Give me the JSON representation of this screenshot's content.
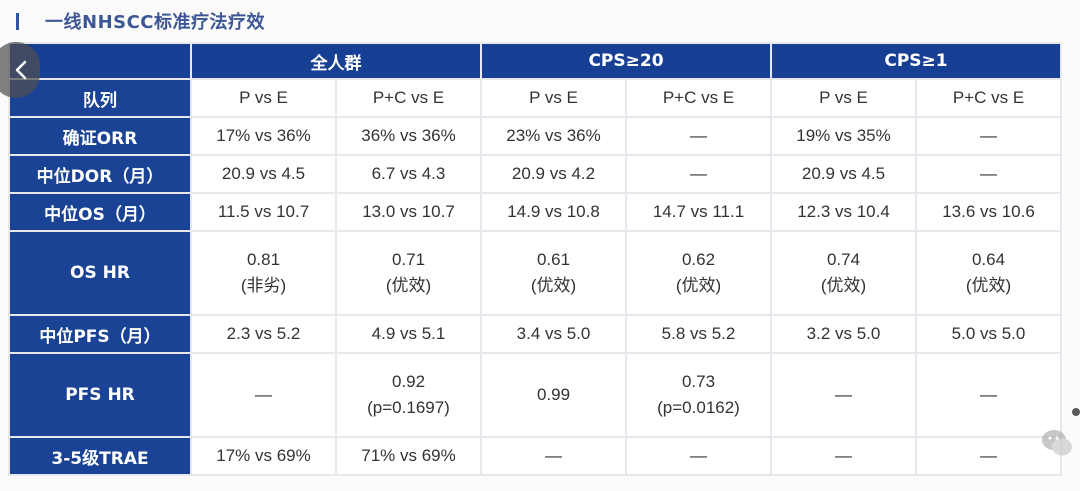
{
  "title": "一线NHSCC标准疗法疗效",
  "groups": [
    "全人群",
    "CPS≥20",
    "CPS≥1"
  ],
  "subheader": {
    "label": "队列",
    "cols": [
      "P vs E",
      "P+C vs E",
      "P vs E",
      "P+C vs E",
      "P vs E",
      "P+C vs E"
    ]
  },
  "rows": [
    {
      "label": "确证ORR",
      "cells": [
        [
          "17% vs 36%"
        ],
        [
          "36% vs 36%"
        ],
        [
          "23% vs 36%"
        ],
        [
          "—"
        ],
        [
          "19% vs 35%"
        ],
        [
          "—"
        ]
      ]
    },
    {
      "label": "中位DOR（月）",
      "cells": [
        [
          "20.9 vs 4.5"
        ],
        [
          "6.7 vs 4.3"
        ],
        [
          "20.9 vs 4.2"
        ],
        [
          "—"
        ],
        [
          "20.9 vs 4.5"
        ],
        [
          "—"
        ]
      ]
    },
    {
      "label": "中位OS（月）",
      "cells": [
        [
          "11.5 vs 10.7"
        ],
        [
          "13.0 vs 10.7"
        ],
        [
          "14.9 vs 10.8"
        ],
        [
          "14.7 vs 11.1"
        ],
        [
          "12.3 vs 10.4"
        ],
        [
          "13.6 vs 10.6"
        ]
      ]
    },
    {
      "label": "OS HR",
      "cells": [
        [
          "0.81",
          "(非劣)"
        ],
        [
          "0.71",
          "(优效)"
        ],
        [
          "0.61",
          "(优效)"
        ],
        [
          "0.62",
          "(优效)"
        ],
        [
          "0.74",
          "(优效)"
        ],
        [
          "0.64",
          "(优效)"
        ]
      ]
    },
    {
      "label": "中位PFS（月）",
      "cells": [
        [
          "2.3 vs 5.2"
        ],
        [
          "4.9 vs 5.1"
        ],
        [
          "3.4 vs 5.0"
        ],
        [
          "5.8 vs 5.2"
        ],
        [
          "3.2 vs 5.0"
        ],
        [
          "5.0 vs 5.0"
        ]
      ]
    },
    {
      "label": "PFS HR",
      "cells": [
        [
          "—"
        ],
        [
          "0.92",
          "(p=0.1697)"
        ],
        [
          "0.99"
        ],
        [
          "0.73",
          "(p=0.0162)"
        ],
        [
          "—"
        ],
        [
          "—"
        ]
      ]
    },
    {
      "label": "3-5级TRAE",
      "cells": [
        [
          "17% vs 69%"
        ],
        [
          "71% vs 69%"
        ],
        [
          "—"
        ],
        [
          "—"
        ],
        [
          "—"
        ],
        [
          "—"
        ]
      ]
    }
  ],
  "icons": {
    "back": "chevron-left-icon",
    "watermark": "wechat-icon"
  },
  "colors": {
    "header_bg": "#173f94",
    "title": "#3d5796"
  }
}
